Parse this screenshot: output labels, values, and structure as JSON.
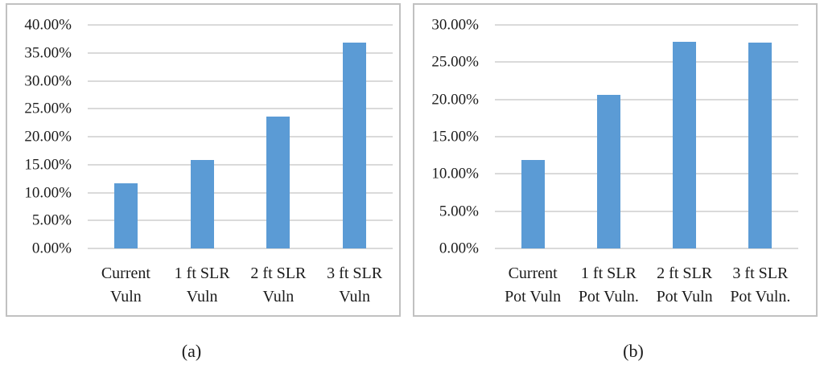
{
  "figure": {
    "captions": [
      "(a)",
      "(b)"
    ]
  },
  "colors": {
    "bar_fill": "#5B9BD5",
    "gridline": "#DADADA",
    "panel_border": "#C1C1C1",
    "text": "#1B1B1B"
  },
  "chart_data": [
    {
      "type": "bar",
      "panel_label": "(a)",
      "title": "",
      "xlabel": "",
      "ylabel": "",
      "categories": [
        "Current\nVuln",
        "1 ft SLR\nVuln",
        "2 ft SLR\nVuln",
        "3 ft SLR\nVuln"
      ],
      "values": [
        11.7,
        15.8,
        23.6,
        36.8
      ],
      "value_unit": "percent",
      "ylim": [
        0,
        40
      ],
      "ytick_step": 5,
      "ytick_labels_top_to_bottom": [
        "40.00%",
        "35.00%",
        "30.00%",
        "25.00%",
        "20.00%",
        "15.00%",
        "10.00%",
        "5.00%",
        "0.00%"
      ],
      "grid": true,
      "legend_position": "none"
    },
    {
      "type": "bar",
      "panel_label": "(b)",
      "title": "",
      "xlabel": "",
      "ylabel": "",
      "categories": [
        "Current\nPot Vuln",
        "1 ft SLR\nPot Vuln.",
        "2 ft SLR\nPot Vuln",
        "3 ft SLR\nPot Vuln."
      ],
      "values": [
        11.9,
        20.6,
        27.7,
        27.6
      ],
      "value_unit": "percent",
      "ylim": [
        0,
        30
      ],
      "ytick_step": 5,
      "ytick_labels_top_to_bottom": [
        "30.00%",
        "25.00%",
        "20.00%",
        "15.00%",
        "10.00%",
        "5.00%",
        "0.00%"
      ],
      "grid": true,
      "legend_position": "none"
    }
  ]
}
